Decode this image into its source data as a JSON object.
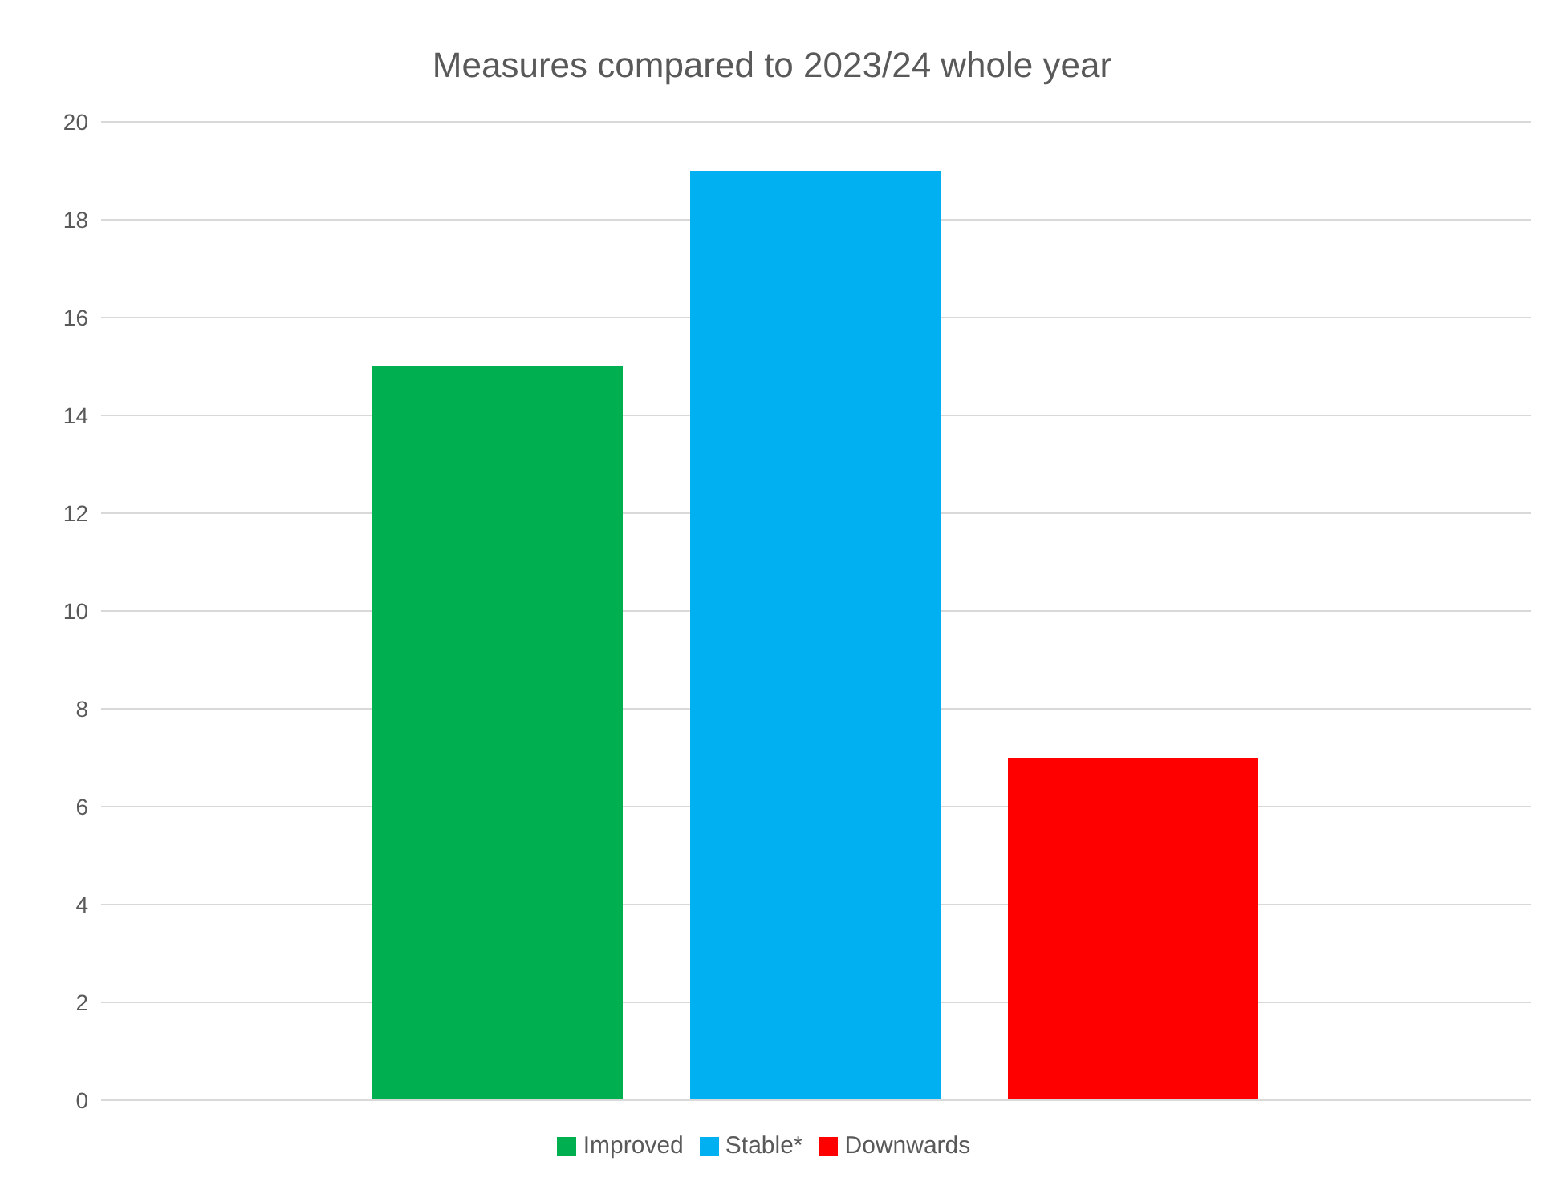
{
  "chart_data": {
    "type": "bar",
    "title": "Measures compared to 2023/24 whole year",
    "categories": [
      null
    ],
    "series": [
      {
        "name": "Improved",
        "color": "#00b050",
        "values": [
          15
        ]
      },
      {
        "name": "Stable*",
        "color": "#00b0f0",
        "values": [
          19
        ]
      },
      {
        "name": "Downwards",
        "color": "#ff0000",
        "values": [
          7
        ]
      }
    ],
    "ylim": [
      0,
      20
    ],
    "yticks": [
      0,
      2,
      4,
      6,
      8,
      10,
      12,
      14,
      16,
      18,
      20
    ],
    "grid": "y",
    "legend": "bottom"
  }
}
